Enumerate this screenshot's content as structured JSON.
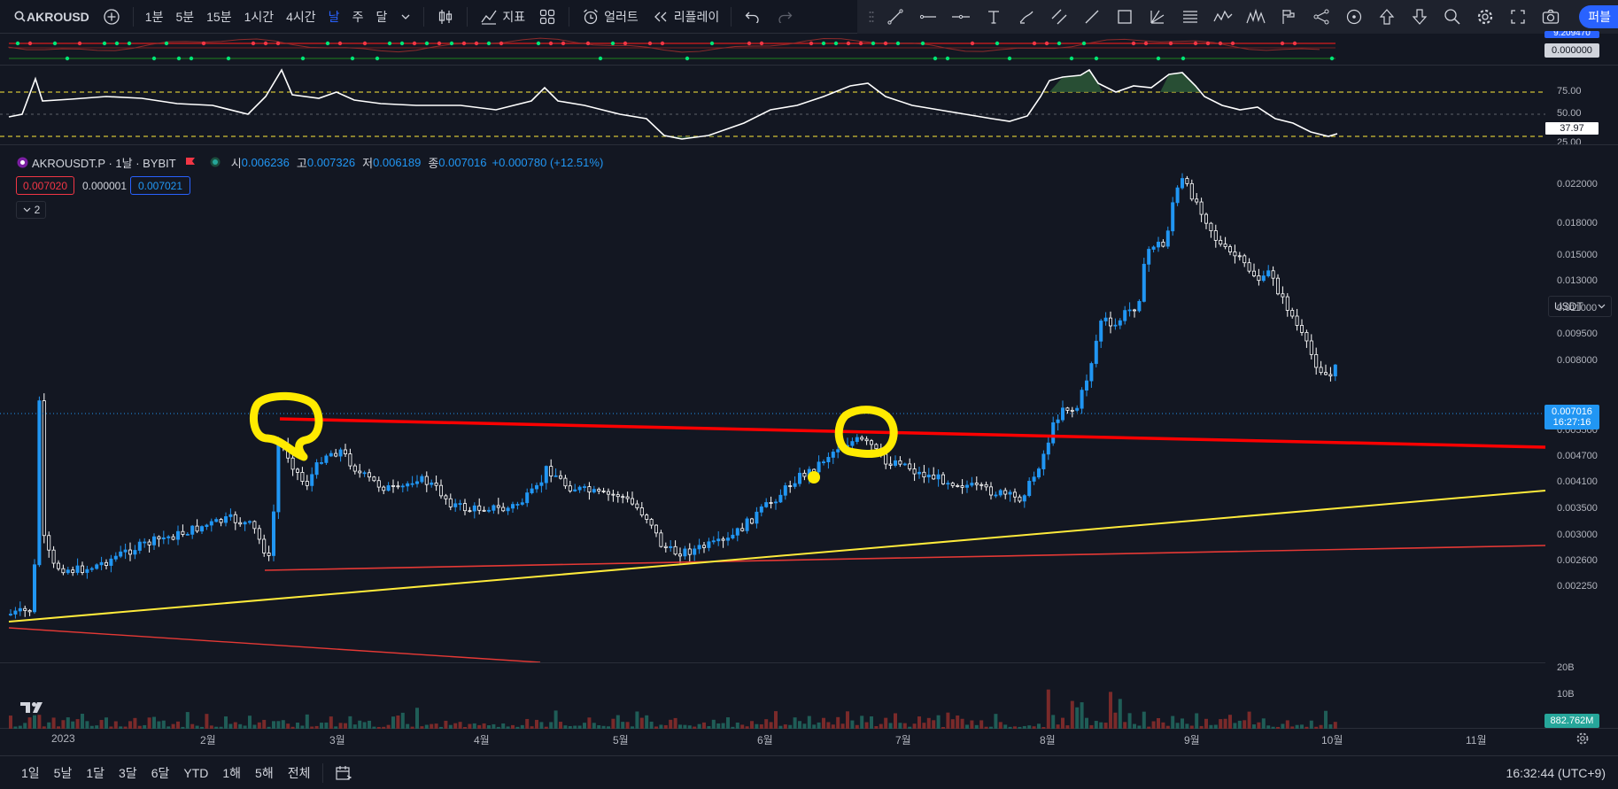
{
  "toolbar": {
    "symbol": "AKROUSD",
    "intervals": [
      "1분",
      "5분",
      "15분",
      "1시간",
      "4시간",
      "날",
      "주",
      "달"
    ],
    "active_interval": "날",
    "indicators_label": "지표",
    "alert_label": "얼러트",
    "replay_label": "리플레이",
    "publish_label": "퍼블"
  },
  "legend": {
    "symbol_line": "AKROUSDT.P · 1날 · BYBIT",
    "open_label": "시",
    "open": "0.006236",
    "high_label": "고",
    "high": "0.007326",
    "low_label": "저",
    "low": "0.006189",
    "close_label": "종",
    "close": "0.007016",
    "change": "+0.000780 (+12.51%)",
    "bid": "0.007020",
    "spread": "0.000001",
    "ask": "0.007021",
    "collapse_count": "2"
  },
  "currency": "USDT",
  "price_axis": [
    "0.022000",
    "0.018000",
    "0.015000",
    "0.013000",
    "0.011000",
    "0.009500",
    "0.008000",
    "0.005500",
    "0.004700",
    "0.004100",
    "0.003500",
    "0.003000",
    "0.002600",
    "0.002250"
  ],
  "last_price": {
    "value": "0.007016",
    "countdown": "16:27:16"
  },
  "oscillator": {
    "levels": [
      "75.00",
      "50.00",
      "25.00"
    ],
    "current": "37.97",
    "top_value": "0.000000",
    "top_value_partial": "9.209470"
  },
  "volume": {
    "levels": [
      "20B",
      "10B"
    ],
    "current": "882.762M"
  },
  "time_axis": [
    "2023",
    "2월",
    "3월",
    "4월",
    "5월",
    "6월",
    "7월",
    "8월",
    "9월",
    "10월",
    "11월"
  ],
  "bottom": {
    "ranges": [
      "1일",
      "5날",
      "1달",
      "3달",
      "6달",
      "YTD",
      "1해",
      "5해",
      "전체"
    ],
    "clock": "16:32:44 (UTC+9)"
  },
  "colors": {
    "background": "#131722",
    "up": "#2196f3",
    "down": "#ffffff",
    "trendline_red": "#ff0000",
    "trendline_yellow": "#ffeb3b",
    "highlight": "#ffeb00"
  }
}
